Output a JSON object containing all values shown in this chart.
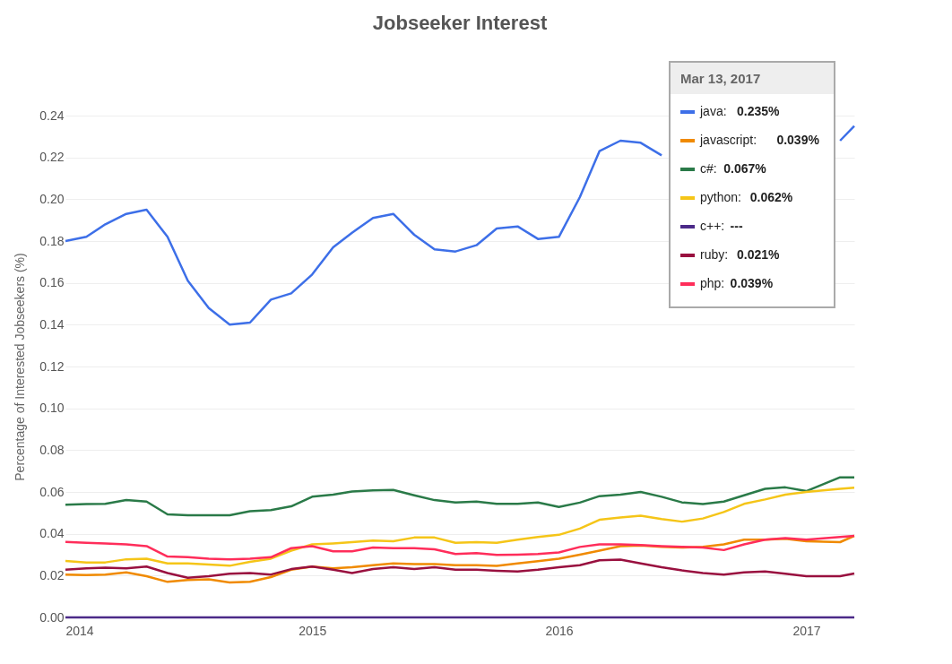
{
  "chart_data": {
    "type": "line",
    "title": "Jobseeker Interest",
    "ylabel": "Percentage of Interested Jobseekers (%)",
    "legend_title": "Mar 13, 2017",
    "x": [
      "2014-01",
      "2014-02",
      "2014-03",
      "2014-04",
      "2014-05",
      "2014-06",
      "2014-07",
      "2014-08",
      "2014-09",
      "2014-10",
      "2014-11",
      "2014-12",
      "2015-01",
      "2015-02",
      "2015-03",
      "2015-04",
      "2015-05",
      "2015-06",
      "2015-07",
      "2015-08",
      "2015-09",
      "2015-10",
      "2015-11",
      "2015-12",
      "2016-01",
      "2016-02",
      "2016-03",
      "2016-04",
      "2016-05",
      "2016-06",
      "2016-07",
      "2016-08",
      "2016-09",
      "2016-10",
      "2016-11",
      "2016-12",
      "2017-01",
      "2017-02-20",
      "2017-03-13"
    ],
    "series": [
      {
        "name": "java:",
        "color": "#3d6fe8",
        "values": [
          0.18,
          0.182,
          0.188,
          0.193,
          0.195,
          0.182,
          0.161,
          0.148,
          0.14,
          0.141,
          0.152,
          0.155,
          0.164,
          0.177,
          0.184,
          0.191,
          0.193,
          0.183,
          0.176,
          0.175,
          0.178,
          0.186,
          0.187,
          0.181,
          0.182,
          0.201,
          0.223,
          0.228,
          0.227,
          0.221,
          null,
          null,
          null,
          null,
          null,
          null,
          null,
          0.228,
          0.235
        ]
      },
      {
        "name": "javascript:",
        "color": "#f08a00",
        "values": [
          0.0205,
          0.0202,
          0.0205,
          0.0215,
          0.0197,
          0.017,
          0.0179,
          0.0182,
          0.0167,
          0.017,
          0.0193,
          0.0228,
          0.0243,
          0.0235,
          0.024,
          0.025,
          0.0258,
          0.0255,
          0.0255,
          0.025,
          0.025,
          0.0246,
          0.0258,
          0.0269,
          0.0281,
          0.03,
          0.0319,
          0.0341,
          0.0344,
          0.0337,
          0.0334,
          0.0338,
          0.0349,
          0.0372,
          0.0372,
          0.0376,
          0.0364,
          0.036,
          0.039
        ]
      },
      {
        "name": "c#:",
        "color": "#2a7a48",
        "values": [
          0.0539,
          0.0542,
          0.0543,
          0.0561,
          0.0554,
          0.0493,
          0.0489,
          0.0489,
          0.0489,
          0.0508,
          0.0513,
          0.0531,
          0.0577,
          0.0587,
          0.0602,
          0.0607,
          0.061,
          0.0584,
          0.0561,
          0.055,
          0.0554,
          0.0543,
          0.0543,
          0.055,
          0.0528,
          0.0549,
          0.058,
          0.0587,
          0.06,
          0.0577,
          0.055,
          0.0542,
          0.0554,
          0.0584,
          0.0615,
          0.0622,
          0.0604,
          0.067,
          0.067
        ]
      },
      {
        "name": "python:",
        "color": "#f5c518",
        "values": [
          0.027,
          0.0263,
          0.0263,
          0.0278,
          0.0281,
          0.0258,
          0.0258,
          0.0253,
          0.0247,
          0.0266,
          0.0281,
          0.0319,
          0.0349,
          0.0354,
          0.036,
          0.0367,
          0.0364,
          0.0382,
          0.0382,
          0.0357,
          0.036,
          0.0357,
          0.0372,
          0.0385,
          0.0395,
          0.0425,
          0.0467,
          0.0478,
          0.0486,
          0.047,
          0.0458,
          0.0473,
          0.0504,
          0.0543,
          0.0564,
          0.0587,
          0.06,
          0.0615,
          0.062
        ]
      },
      {
        "name": "c++:",
        "color": "#4b2a88",
        "values": [
          0,
          0,
          0,
          0,
          0,
          0,
          0,
          0,
          0,
          0,
          0,
          0,
          0,
          0,
          0,
          0,
          0,
          0,
          0,
          0,
          0,
          0,
          0,
          0,
          0,
          0,
          0,
          0,
          0,
          0,
          0,
          0,
          0,
          0,
          0,
          0,
          0,
          0,
          0
        ]
      },
      {
        "name": "ruby:",
        "color": "#99103f",
        "values": [
          0.0228,
          0.0235,
          0.0238,
          0.0235,
          0.0243,
          0.0212,
          0.019,
          0.0197,
          0.0209,
          0.0212,
          0.0205,
          0.0231,
          0.0243,
          0.0228,
          0.0212,
          0.0231,
          0.024,
          0.0231,
          0.024,
          0.0228,
          0.0228,
          0.0223,
          0.022,
          0.0228,
          0.024,
          0.025,
          0.0273,
          0.0276,
          0.0258,
          0.024,
          0.0225,
          0.0212,
          0.0205,
          0.0215,
          0.022,
          0.0209,
          0.0197,
          0.0197,
          0.021
        ]
      },
      {
        "name": "php:",
        "color": "#ff2d5a",
        "values": [
          0.0361,
          0.0357,
          0.0354,
          0.0349,
          0.0341,
          0.0291,
          0.0288,
          0.0281,
          0.0278,
          0.0281,
          0.0288,
          0.0331,
          0.0341,
          0.0316,
          0.0316,
          0.0334,
          0.0331,
          0.0331,
          0.0326,
          0.0303,
          0.0308,
          0.0299,
          0.03,
          0.0303,
          0.0311,
          0.0337,
          0.0349,
          0.0349,
          0.0346,
          0.0341,
          0.0338,
          0.0334,
          0.0322,
          0.0349,
          0.0372,
          0.0379,
          0.0372,
          0.0385,
          0.039
        ]
      }
    ],
    "xlim": [
      "2014-01-01",
      "2017-03-13"
    ],
    "xticks": [
      "2014",
      "2015",
      "2016",
      "2017"
    ],
    "ylim": [
      0,
      0.24
    ],
    "yticks": [
      {
        "value": 0,
        "label": "0.00"
      },
      0.02,
      0.04,
      0.06,
      0.08,
      {
        "value": 0.1,
        "label": "0.10"
      },
      0.12,
      0.14,
      0.16,
      0.18,
      {
        "value": 0.2,
        "label": "0.20"
      },
      0.22,
      0.24
    ],
    "annotations": [
      "0.235%",
      "0.039%",
      "0.067%",
      "0.062%",
      "---",
      "0.021%",
      "0.039%"
    ],
    "grid": "y",
    "legend": "top right",
    "marker": "none",
    "line_style": "solid"
  }
}
